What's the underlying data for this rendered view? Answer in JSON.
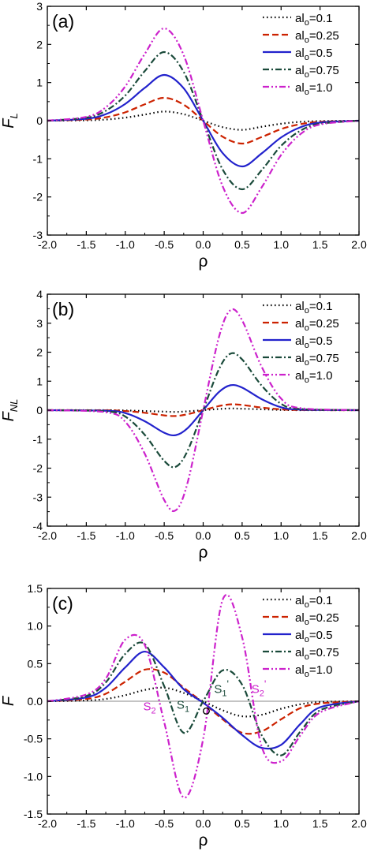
{
  "chart_data": [
    {
      "type": "line",
      "panel_label": "(a)",
      "ylabel_main": "F",
      "ylabel_sub": "L",
      "xlabel": "ρ",
      "xlim": [
        -2.0,
        2.0
      ],
      "ylim": [
        -3,
        3
      ],
      "xticks": [
        -2.0,
        -1.5,
        -1.0,
        -0.5,
        0.0,
        0.5,
        1.0,
        1.5,
        2.0
      ],
      "xtick_labels": [
        "-2.0",
        "-1.5",
        "-1.0",
        "-0.5",
        "0.0",
        "0.5",
        "1.0",
        "1.5",
        "2.0"
      ],
      "yticks": [
        -3,
        -2,
        -1,
        0,
        1,
        2,
        3
      ],
      "ytick_labels": [
        "-3",
        "-2",
        "-1",
        "0",
        "1",
        "2",
        "3"
      ],
      "legend": "top-right",
      "zero_line": false,
      "series": [
        {
          "name": "al_o=0.1",
          "legend_main": "al",
          "legend_sub": "o",
          "legend_value": "=0.1",
          "color": "#000000",
          "dash": "1.5,3.5",
          "x": [
            -2.0,
            -1.5,
            -1.25,
            -1.0,
            -0.75,
            -0.5,
            -0.25,
            0.0,
            0.25,
            0.5,
            0.75,
            1.0,
            1.25,
            1.5,
            2.0
          ],
          "y": [
            0.0,
            0.01,
            0.03,
            0.08,
            0.16,
            0.24,
            0.17,
            0.0,
            -0.17,
            -0.24,
            -0.16,
            -0.08,
            -0.03,
            -0.01,
            0.0
          ]
        },
        {
          "name": "al_o=0.25",
          "legend_main": "al",
          "legend_sub": "o",
          "legend_value": "=0.25",
          "color": "#cc2200",
          "dash": "8,4",
          "x": [
            -2.0,
            -1.5,
            -1.25,
            -1.0,
            -0.75,
            -0.5,
            -0.25,
            0.0,
            0.25,
            0.5,
            0.75,
            1.0,
            1.25,
            1.5,
            2.0
          ],
          "y": [
            0.0,
            0.03,
            0.09,
            0.22,
            0.43,
            0.6,
            0.42,
            0.0,
            -0.42,
            -0.6,
            -0.43,
            -0.22,
            -0.09,
            -0.03,
            0.0
          ]
        },
        {
          "name": "al_o=0.5",
          "legend_main": "al",
          "legend_sub": "o",
          "legend_value": "=0.5",
          "color": "#2222cc",
          "dash": "",
          "x": [
            -2.0,
            -1.5,
            -1.25,
            -1.0,
            -0.75,
            -0.5,
            -0.25,
            0.0,
            0.25,
            0.5,
            0.75,
            1.0,
            1.25,
            1.5,
            2.0
          ],
          "y": [
            0.0,
            0.05,
            0.17,
            0.44,
            0.86,
            1.2,
            0.85,
            0.0,
            -0.85,
            -1.2,
            -0.86,
            -0.44,
            -0.17,
            -0.05,
            0.0
          ]
        },
        {
          "name": "al_o=0.75",
          "legend_main": "al",
          "legend_sub": "o",
          "legend_value": "=0.75",
          "color": "#1a4a3a",
          "dash": "8,3,2,3",
          "x": [
            -2.0,
            -1.5,
            -1.25,
            -1.0,
            -0.75,
            -0.5,
            -0.25,
            0.0,
            0.25,
            0.5,
            0.75,
            1.0,
            1.25,
            1.5,
            2.0
          ],
          "y": [
            0.0,
            0.08,
            0.26,
            0.66,
            1.3,
            1.8,
            1.28,
            0.0,
            -1.28,
            -1.8,
            -1.3,
            -0.66,
            -0.26,
            -0.08,
            0.0
          ]
        },
        {
          "name": "al_o=1.0",
          "legend_main": "al",
          "legend_sub": "o",
          "legend_value": "=1.0",
          "color": "#cc22cc",
          "dash": "8,3,2,3,2,3",
          "x": [
            -2.0,
            -1.5,
            -1.25,
            -1.0,
            -0.75,
            -0.5,
            -0.25,
            0.0,
            0.25,
            0.5,
            0.75,
            1.0,
            1.25,
            1.5,
            2.0
          ],
          "y": [
            0.0,
            0.1,
            0.35,
            0.9,
            1.75,
            2.42,
            1.72,
            0.0,
            -1.72,
            -2.42,
            -1.75,
            -0.9,
            -0.35,
            -0.1,
            0.0
          ]
        }
      ]
    },
    {
      "type": "line",
      "panel_label": "(b)",
      "ylabel_main": "F",
      "ylabel_sub": "NL",
      "xlabel": "ρ",
      "xlim": [
        -2.0,
        2.0
      ],
      "ylim": [
        -4,
        4
      ],
      "xticks": [
        -2.0,
        -1.5,
        -1.0,
        -0.5,
        0.0,
        0.5,
        1.0,
        1.5,
        2.0
      ],
      "xtick_labels": [
        "-2.0",
        "-1.5",
        "-1.0",
        "-0.5",
        "0.0",
        "0.5",
        "1.0",
        "1.5",
        "2.0"
      ],
      "yticks": [
        -4,
        -3,
        -2,
        -1,
        0,
        1,
        2,
        3,
        4
      ],
      "ytick_labels": [
        "-4",
        "-3",
        "-2",
        "-1",
        "0",
        "1",
        "2",
        "3",
        "4"
      ],
      "legend": "top-right",
      "zero_line": false,
      "series": [
        {
          "name": "al_o=0.1",
          "legend_main": "al",
          "legend_sub": "o",
          "legend_value": "=0.1",
          "color": "#000000",
          "dash": "1.5,3.5",
          "x": [
            -2.0,
            -1.25,
            -1.0,
            -0.75,
            -0.5,
            -0.35,
            -0.2,
            0.0,
            0.2,
            0.35,
            0.5,
            0.75,
            1.0,
            1.25,
            2.0
          ],
          "y": [
            0.0,
            0.0,
            -0.01,
            -0.03,
            -0.05,
            -0.06,
            -0.04,
            0.0,
            0.04,
            0.06,
            0.05,
            0.03,
            0.01,
            0.0,
            0.0
          ]
        },
        {
          "name": "al_o=0.25",
          "legend_main": "al",
          "legend_sub": "o",
          "legend_value": "=0.25",
          "color": "#cc2200",
          "dash": "8,4",
          "x": [
            -2.0,
            -1.25,
            -1.0,
            -0.75,
            -0.5,
            -0.35,
            -0.2,
            0.0,
            0.2,
            0.35,
            0.5,
            0.75,
            1.0,
            1.25,
            2.0
          ],
          "y": [
            0.0,
            -0.005,
            -0.03,
            -0.09,
            -0.18,
            -0.2,
            -0.14,
            0.0,
            0.14,
            0.2,
            0.18,
            0.09,
            0.03,
            0.005,
            0.0
          ]
        },
        {
          "name": "al_o=0.5",
          "legend_main": "al",
          "legend_sub": "o",
          "legend_value": "=0.5",
          "color": "#2222cc",
          "dash": "",
          "x": [
            -2.0,
            -1.25,
            -1.0,
            -0.75,
            -0.5,
            -0.35,
            -0.2,
            0.0,
            0.2,
            0.35,
            0.5,
            0.75,
            1.0,
            1.25,
            2.0
          ],
          "y": [
            0.0,
            -0.02,
            -0.1,
            -0.38,
            -0.78,
            -0.86,
            -0.62,
            0.0,
            0.62,
            0.86,
            0.78,
            0.38,
            0.1,
            0.02,
            0.0
          ]
        },
        {
          "name": "al_o=0.75",
          "legend_main": "al",
          "legend_sub": "o",
          "legend_value": "=0.75",
          "color": "#1a4a3a",
          "dash": "8,3,2,3",
          "x": [
            -2.0,
            -1.25,
            -1.0,
            -0.75,
            -0.5,
            -0.35,
            -0.2,
            0.0,
            0.2,
            0.35,
            0.5,
            0.75,
            1.0,
            1.25,
            2.0
          ],
          "y": [
            0.0,
            -0.04,
            -0.22,
            -0.85,
            -1.75,
            -1.95,
            -1.4,
            0.0,
            1.4,
            1.95,
            1.75,
            0.85,
            0.22,
            0.04,
            0.0
          ]
        },
        {
          "name": "al_o=1.0",
          "legend_main": "al",
          "legend_sub": "o",
          "legend_value": "=1.0",
          "color": "#cc22cc",
          "dash": "8,3,2,3,2,3",
          "x": [
            -2.0,
            -1.25,
            -1.0,
            -0.75,
            -0.5,
            -0.35,
            -0.2,
            0.0,
            0.2,
            0.35,
            0.5,
            0.75,
            1.0,
            1.25,
            2.0
          ],
          "y": [
            0.0,
            -0.07,
            -0.4,
            -1.5,
            -3.1,
            -3.45,
            -2.5,
            0.0,
            2.5,
            3.45,
            3.1,
            1.5,
            0.4,
            0.07,
            0.0
          ]
        }
      ]
    },
    {
      "type": "line",
      "panel_label": "(c)",
      "ylabel_main": "F",
      "ylabel_sub": "",
      "xlabel": "ρ",
      "xlim": [
        -2.0,
        2.0
      ],
      "ylim": [
        -1.5,
        1.5
      ],
      "xticks": [
        -2.0,
        -1.5,
        -1.0,
        -0.5,
        0.0,
        0.5,
        1.0,
        1.5,
        2.0
      ],
      "xtick_labels": [
        "-2.0",
        "-1.5",
        "-1.0",
        "-0.5",
        "0.0",
        "0.5",
        "1.0",
        "1.5",
        "2.0"
      ],
      "yticks": [
        -1.5,
        -1.0,
        -0.5,
        0.0,
        0.5,
        1.0,
        1.5
      ],
      "ytick_labels": [
        "-1.5",
        "-1.0",
        "-0.5",
        "0.0",
        "0.5",
        "1.0",
        "1.5"
      ],
      "legend": "top-right",
      "zero_line": true,
      "series": [
        {
          "name": "al_o=0.1",
          "legend_main": "al",
          "legend_sub": "o",
          "legend_value": "=0.1",
          "color": "#000000",
          "dash": "1.5,3.5",
          "x": [
            -2.0,
            -1.5,
            -1.25,
            -1.0,
            -0.75,
            -0.5,
            -0.25,
            0.0,
            0.25,
            0.5,
            0.75,
            1.0,
            1.25,
            1.5,
            2.0
          ],
          "y": [
            0.0,
            0.01,
            0.03,
            0.08,
            0.15,
            0.18,
            0.11,
            0.0,
            -0.12,
            -0.2,
            -0.18,
            -0.1,
            -0.04,
            -0.01,
            0.0
          ]
        },
        {
          "name": "al_o=0.25",
          "legend_main": "al",
          "legend_sub": "o",
          "legend_value": "=0.25",
          "color": "#cc2200",
          "dash": "8,4",
          "x": [
            -2.0,
            -1.5,
            -1.25,
            -1.0,
            -0.75,
            -0.5,
            -0.25,
            0.0,
            0.25,
            0.5,
            0.75,
            1.0,
            1.25,
            1.5,
            2.0
          ],
          "y": [
            0.0,
            0.03,
            0.1,
            0.26,
            0.42,
            0.38,
            0.18,
            -0.02,
            -0.24,
            -0.42,
            -0.4,
            -0.24,
            -0.09,
            -0.03,
            0.0
          ]
        },
        {
          "name": "al_o=0.5",
          "legend_main": "al",
          "legend_sub": "o",
          "legend_value": "=0.5",
          "color": "#2222cc",
          "dash": "",
          "x": [
            -2.0,
            -1.5,
            -1.25,
            -1.0,
            -0.75,
            -0.5,
            -0.25,
            0.0,
            0.25,
            0.5,
            0.75,
            1.0,
            1.25,
            1.5,
            2.0
          ],
          "y": [
            0.0,
            0.05,
            0.18,
            0.45,
            0.66,
            0.45,
            0.16,
            -0.02,
            -0.22,
            -0.45,
            -0.62,
            -0.58,
            -0.3,
            -0.08,
            0.0
          ]
        },
        {
          "name": "al_o=0.75",
          "legend_main": "al",
          "legend_sub": "o",
          "legend_value": "=0.75",
          "color": "#1a4a3a",
          "dash": "8,3,2,3",
          "x": [
            -2.0,
            -1.5,
            -1.25,
            -1.0,
            -0.75,
            -0.5,
            -0.25,
            0.0,
            0.25,
            0.5,
            0.75,
            1.0,
            1.25,
            1.5,
            2.0
          ],
          "y": [
            0.0,
            0.07,
            0.25,
            0.63,
            0.76,
            0.2,
            -0.42,
            0.0,
            0.41,
            0.22,
            -0.45,
            -0.72,
            -0.4,
            -0.12,
            0.0
          ]
        },
        {
          "name": "al_o=1.0",
          "legend_main": "al",
          "legend_sub": "o",
          "legend_value": "=1.0",
          "color": "#cc22cc",
          "dash": "8,3,2,3,2,3",
          "x": [
            -2.0,
            -1.5,
            -1.25,
            -1.0,
            -0.75,
            -0.5,
            -0.25,
            0.0,
            0.25,
            0.5,
            0.75,
            1.0,
            1.25,
            1.5,
            2.0
          ],
          "y": [
            0.0,
            0.09,
            0.3,
            0.82,
            0.75,
            -0.28,
            -1.28,
            -0.5,
            1.35,
            0.85,
            -0.6,
            -0.8,
            -0.45,
            -0.15,
            0.0
          ]
        }
      ],
      "annotations": [
        {
          "text_main": "S",
          "text_sub": "2",
          "text_sup": "",
          "x": -0.77,
          "y": -0.12,
          "color": "#cc22cc"
        },
        {
          "text_main": "S",
          "text_sub": "1",
          "text_sup": "",
          "x": -0.34,
          "y": -0.1,
          "color": "#1a4a3a"
        },
        {
          "text_main": "S",
          "text_sub": "1",
          "text_sup": "'",
          "x": 0.14,
          "y": 0.11,
          "color": "#1a4a3a"
        },
        {
          "text_main": "S",
          "text_sub": "2",
          "text_sup": "'",
          "x": 0.62,
          "y": 0.11,
          "color": "#cc22cc"
        },
        {
          "text_main": "O",
          "text_sub": "",
          "text_sup": "",
          "x": 0.04,
          "y": -0.13,
          "color": "#000000"
        }
      ]
    }
  ]
}
